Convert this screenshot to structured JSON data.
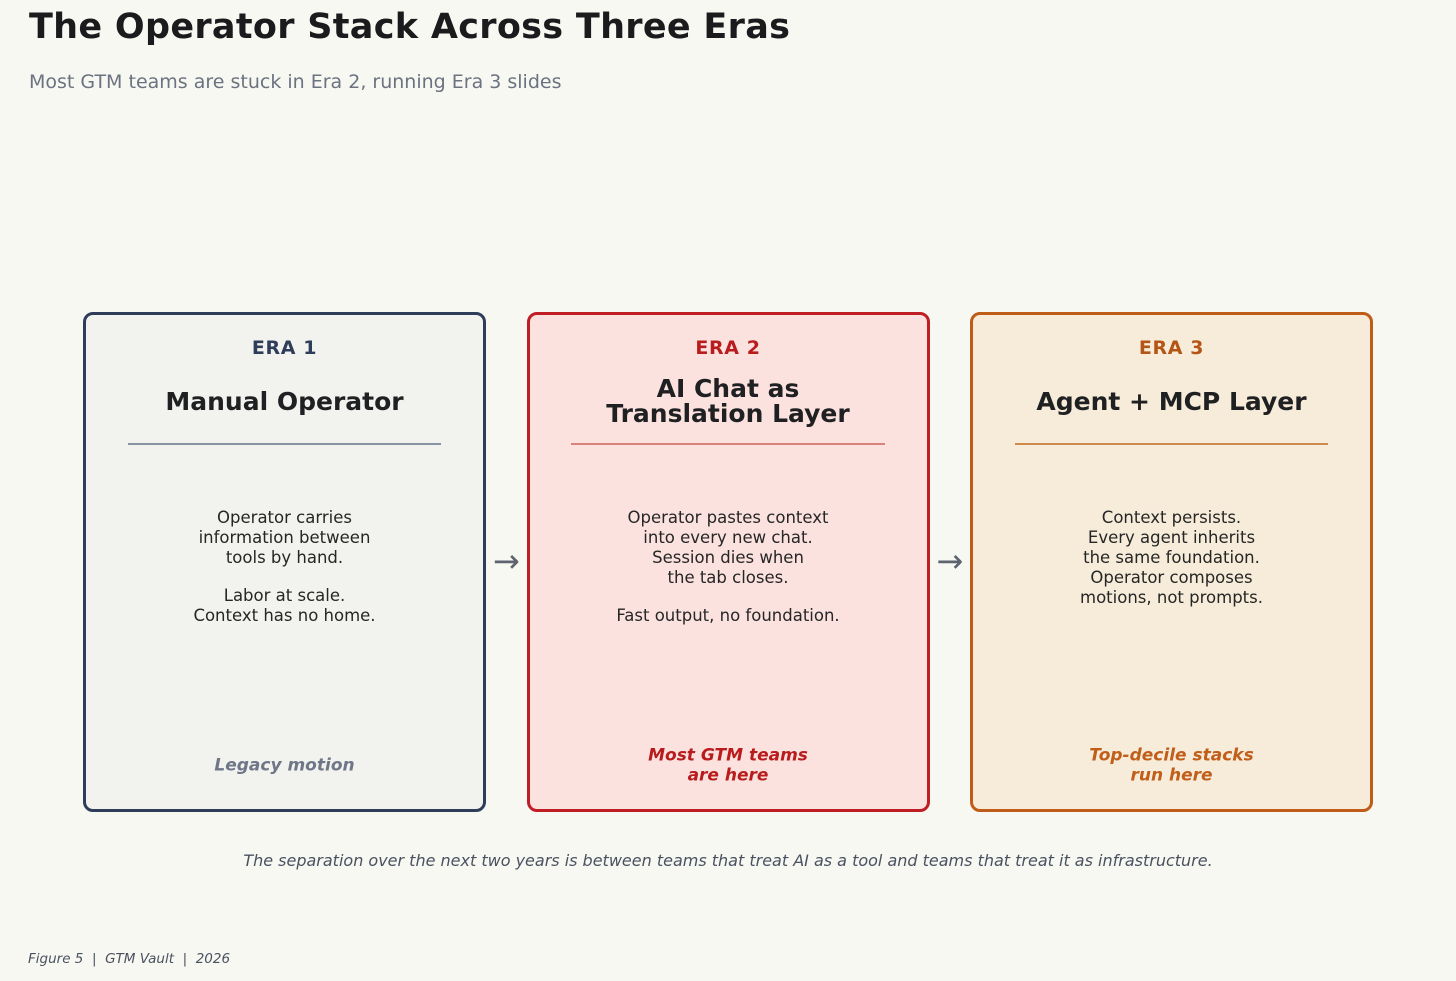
{
  "header": {
    "title": "The Operator Stack Across Three Eras",
    "subtitle": "Most GTM teams are stuck in Era 2, running Era 3 slides"
  },
  "cards": [
    {
      "era": "ERA 1",
      "title": "Manual Operator",
      "body": [
        "Operator carries\ninformation between\ntools by hand.",
        "Labor at scale.\nContext has no home."
      ],
      "tag": "Legacy motion",
      "colors": {
        "border": "#2e3d59",
        "bg": "#f2f2ee",
        "accent": "#2e3d59",
        "divider": "#8a93a5",
        "tag": "#6e7687"
      }
    },
    {
      "era": "ERA 2",
      "title": "AI Chat as\nTranslation Layer",
      "body": [
        "Operator pastes context\ninto every new chat.\nSession dies when\nthe tab closes.",
        "Fast output, no foundation."
      ],
      "tag": "Most GTM teams\nare here",
      "colors": {
        "border": "#c01e25",
        "bg": "#fbe2df",
        "accent": "#b91c1c",
        "divider": "#d9837d",
        "tag": "#b91c1c"
      }
    },
    {
      "era": "ERA 3",
      "title": "Agent + MCP Layer",
      "body": [
        "Context persists.\nEvery agent inherits\nthe same foundation.\nOperator composes\nmotions, not prompts."
      ],
      "tag": "Top-decile stacks\nrun here",
      "colors": {
        "border": "#bf5d18",
        "bg": "#f6ecd9",
        "accent": "#b45515",
        "divider": "#cd8a4d",
        "tag": "#c05e1a"
      }
    }
  ],
  "arrow": {
    "glyph": "→"
  },
  "caption": "The separation over the next two years is between teams that treat AI as a tool and teams that treat it as infrastructure.",
  "footer": "Figure 5  |  GTM Vault  |  2026"
}
